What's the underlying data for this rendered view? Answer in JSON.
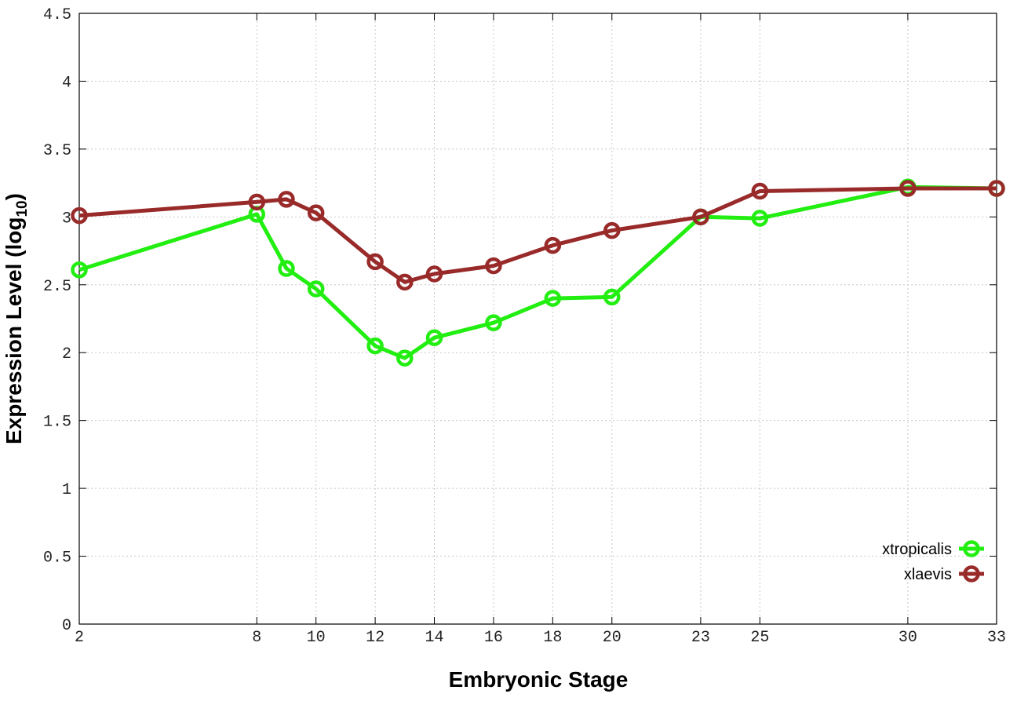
{
  "chart_data": {
    "type": "line",
    "xlabel": "Embryonic Stage",
    "ylabel_main": "Expression Level (log",
    "ylabel_sub": "10",
    "ylabel_close": ")",
    "x_ticks": [
      2,
      8,
      10,
      12,
      14,
      16,
      18,
      20,
      23,
      25,
      30,
      33
    ],
    "x_tick_labels": [
      "2",
      "8",
      "10",
      "12",
      "14",
      "16",
      "18",
      "20",
      "23",
      "25",
      "30",
      "33"
    ],
    "y_ticks": [
      0,
      0.5,
      1,
      1.5,
      2,
      2.5,
      3,
      3.5,
      4,
      4.5
    ],
    "y_tick_labels": [
      "0",
      "0.5",
      "1",
      "1.5",
      "2",
      "2.5",
      "3",
      "3.5",
      "4",
      "4.5"
    ],
    "xlim": [
      2,
      33
    ],
    "ylim": [
      0,
      4.5
    ],
    "grid": true,
    "legend_position": "bottom-right",
    "series": [
      {
        "name": "xtropicalis",
        "color": "#22ee11",
        "x": [
          2,
          8,
          9,
          10,
          12,
          13,
          14,
          16,
          18,
          20,
          23,
          25,
          30,
          33
        ],
        "y": [
          2.61,
          3.02,
          2.62,
          2.47,
          2.05,
          1.96,
          2.11,
          2.22,
          2.4,
          2.41,
          3.0,
          2.99,
          3.22,
          3.21
        ]
      },
      {
        "name": "xlaevis",
        "color": "#992a2a",
        "x": [
          2,
          8,
          9,
          10,
          12,
          13,
          14,
          16,
          18,
          20,
          23,
          25,
          30,
          33
        ],
        "y": [
          3.01,
          3.11,
          3.13,
          3.03,
          2.67,
          2.52,
          2.58,
          2.64,
          2.79,
          2.9,
          3.0,
          3.19,
          3.21,
          3.21
        ]
      }
    ]
  }
}
